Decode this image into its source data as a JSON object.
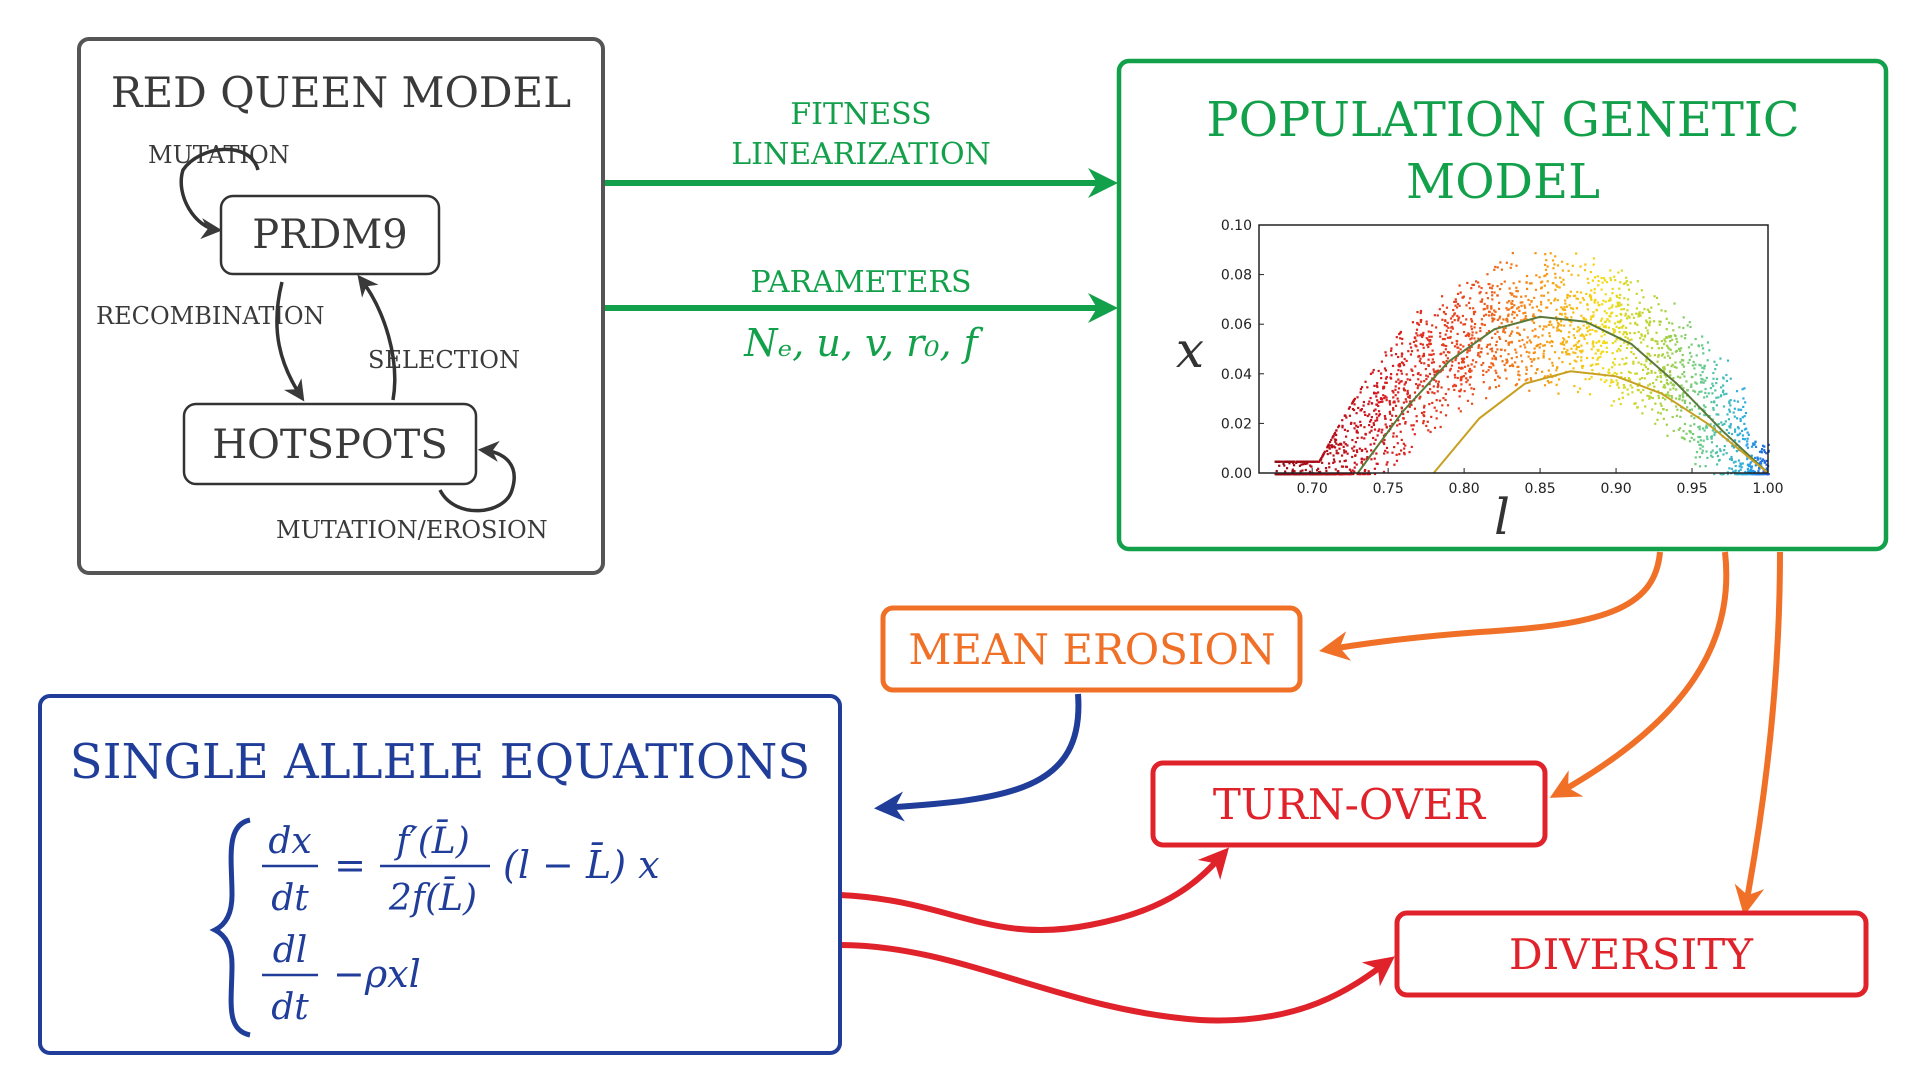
{
  "red_queen": {
    "title": "RED QUEEN MODEL",
    "prdm9": "PRDM9",
    "hotspots": "HOTSPOTS",
    "mutation": "MUTATION",
    "recombination": "RECOMBINATION",
    "selection": "SELECTION",
    "mutation_erosion": "MUTATION/EROSION"
  },
  "arrows": {
    "fitness_line1": "FITNESS",
    "fitness_line2": "LINEARIZATION",
    "parameters": "PARAMETERS",
    "parameters_math": "Nₑ, u, v, r₀, f"
  },
  "popgen": {
    "title_line1": "POPULATION GENETIC",
    "title_line2": "MODEL"
  },
  "outputs": {
    "mean_erosion": "MEAN EROSION",
    "turn_over": "TURN-OVER",
    "diversity": "DIVERSITY"
  },
  "single_allele": {
    "title": "SINGLE ALLELE EQUATIONS",
    "eq1_lhs_num": "dx",
    "eq1_lhs_den": "dt",
    "eq1_rhs_num": "f′(L̄)",
    "eq1_rhs_den": "2f(L̄)",
    "eq1_tail": "(l − L̄) x",
    "eq2_lhs_num": "dl",
    "eq2_lhs_den": "dt",
    "eq2_rhs": "−ρxl"
  },
  "colors": {
    "gray": "#3a3a3a",
    "green": "#12a04a",
    "blue": "#1f3d99",
    "orange": "#f07028",
    "red": "#e0232b"
  },
  "chart_data": {
    "type": "scatter",
    "xlabel": "l",
    "ylabel": "x",
    "xlim": [
      0.665,
      1.0
    ],
    "ylim": [
      0.0,
      0.1
    ],
    "x_ticks": [
      "0.70",
      "0.75",
      "0.80",
      "0.85",
      "0.90",
      "0.95",
      "1.00"
    ],
    "y_ticks": [
      "0.00",
      "0.02",
      "0.04",
      "0.06",
      "0.08",
      "0.10"
    ],
    "colormap": "red-orange-yellow-green-cyan-blue along l",
    "curves": [
      {
        "x": [
          0.73,
          0.76,
          0.79,
          0.82,
          0.85,
          0.88,
          0.91,
          0.94,
          0.97,
          1.0
        ],
        "y": [
          0.0,
          0.025,
          0.045,
          0.058,
          0.063,
          0.061,
          0.052,
          0.036,
          0.017,
          0.0
        ],
        "color": "#5a7a3a"
      },
      {
        "x": [
          0.78,
          0.81,
          0.84,
          0.87,
          0.9,
          0.93,
          0.96,
          0.99,
          1.0
        ],
        "y": [
          0.0,
          0.022,
          0.036,
          0.041,
          0.039,
          0.032,
          0.02,
          0.005,
          0.0
        ],
        "color": "#c8a020"
      }
    ]
  }
}
